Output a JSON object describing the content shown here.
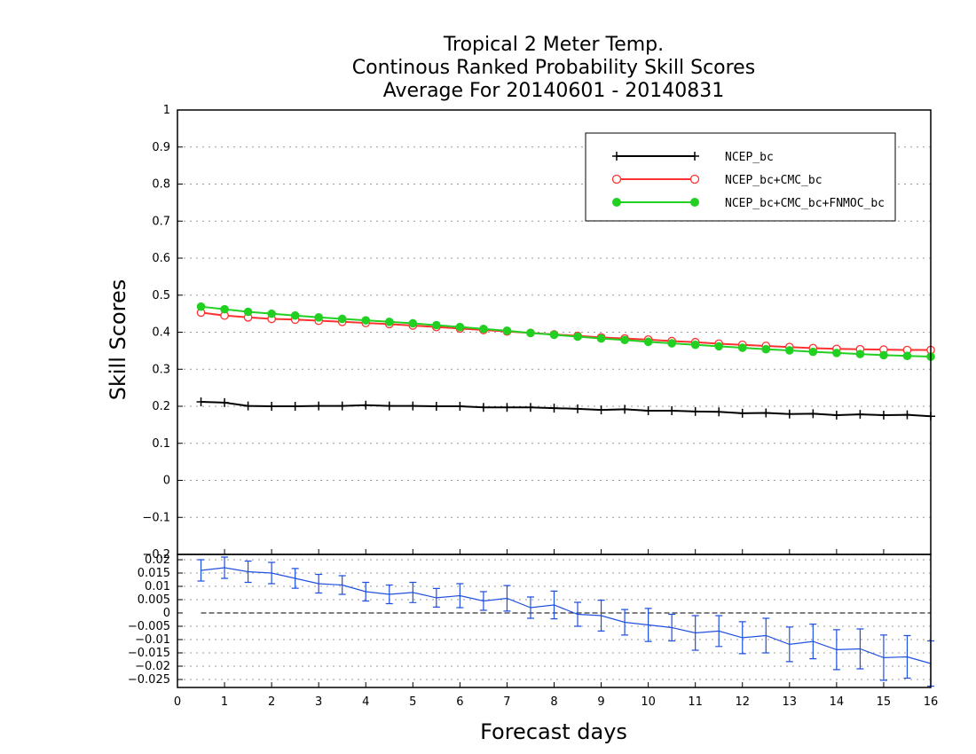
{
  "chart_data": [
    {
      "type": "line",
      "title": [
        "Tropical 2 Meter Temp.",
        "Continous Ranked Probability Skill Scores",
        "Average For 20140601 - 20140831"
      ],
      "xlabel": "Forecast days",
      "ylabel": "Skill Scores",
      "xlim": [
        0,
        16
      ],
      "ylim": [
        -0.2,
        1
      ],
      "xticks": [
        "0",
        "1",
        "2",
        "3",
        "4",
        "5",
        "6",
        "7",
        "8",
        "9",
        "10",
        "11",
        "12",
        "13",
        "14",
        "15",
        "16"
      ],
      "yticks": [
        "-0.2",
        "-0.1",
        "0",
        "0.1",
        "0.2",
        "0.3",
        "0.4",
        "0.5",
        "0.6",
        "0.7",
        "0.8",
        "0.9",
        "1"
      ],
      "grid": true,
      "legend_position": "top-right",
      "x": [
        0.5,
        1,
        1.5,
        2,
        2.5,
        3,
        3.5,
        4,
        4.5,
        5,
        5.5,
        6,
        6.5,
        7,
        7.5,
        8,
        8.5,
        9,
        9.5,
        10,
        10.5,
        11,
        11.5,
        12,
        12.5,
        13,
        13.5,
        14,
        14.5,
        15,
        15.5,
        16
      ],
      "series": [
        {
          "name": "NCEP_bc",
          "color": "#000000",
          "marker": "plus",
          "values": [
            0.212,
            0.21,
            0.201,
            0.2,
            0.2,
            0.201,
            0.201,
            0.203,
            0.201,
            0.201,
            0.2,
            0.2,
            0.197,
            0.197,
            0.197,
            0.195,
            0.193,
            0.19,
            0.192,
            0.188,
            0.188,
            0.186,
            0.185,
            0.181,
            0.182,
            0.179,
            0.18,
            0.176,
            0.178,
            0.176,
            0.177,
            0.173
          ]
        },
        {
          "name": "NCEP_bc+CMC_bc",
          "color": "#ff3030",
          "marker": "open-circle",
          "values": [
            0.453,
            0.445,
            0.44,
            0.436,
            0.434,
            0.431,
            0.428,
            0.425,
            0.422,
            0.418,
            0.414,
            0.41,
            0.406,
            0.402,
            0.398,
            0.394,
            0.39,
            0.386,
            0.383,
            0.38,
            0.376,
            0.373,
            0.369,
            0.366,
            0.363,
            0.36,
            0.357,
            0.355,
            0.354,
            0.353,
            0.352,
            0.352
          ]
        },
        {
          "name": "NCEP_bc+CMC_bc+FNMOC_bc",
          "color": "#22d022",
          "marker": "filled-circle",
          "values": [
            0.469,
            0.462,
            0.455,
            0.45,
            0.445,
            0.44,
            0.436,
            0.432,
            0.428,
            0.424,
            0.419,
            0.414,
            0.409,
            0.404,
            0.398,
            0.393,
            0.388,
            0.383,
            0.379,
            0.374,
            0.37,
            0.366,
            0.362,
            0.358,
            0.354,
            0.351,
            0.347,
            0.344,
            0.341,
            0.338,
            0.336,
            0.334
          ]
        }
      ]
    },
    {
      "type": "line",
      "xlim": [
        0,
        16
      ],
      "ylim": [
        -0.028,
        0.022
      ],
      "yticks": [
        "-0.025",
        "-0.02",
        "-0.015",
        "-0.01",
        "-0.005",
        "0",
        "0.005",
        "0.01",
        "0.015",
        "0.02"
      ],
      "grid": true,
      "zero_line": true,
      "x": [
        0.5,
        1,
        1.5,
        2,
        2.5,
        3,
        3.5,
        4,
        4.5,
        5,
        5.5,
        6,
        6.5,
        7,
        7.5,
        8,
        8.5,
        9,
        9.5,
        10,
        10.5,
        11,
        11.5,
        12,
        12.5,
        13,
        13.5,
        14,
        14.5,
        15,
        15.5,
        16
      ],
      "series": [
        {
          "color": "#2050e0",
          "values": [
            0.016,
            0.017,
            0.0155,
            0.015,
            0.013,
            0.011,
            0.0105,
            0.008,
            0.007,
            0.0077,
            0.0057,
            0.0065,
            0.0045,
            0.0055,
            0.002,
            0.003,
            -0.0005,
            -0.001,
            -0.0035,
            -0.0045,
            -0.0055,
            -0.0075,
            -0.0068,
            -0.0093,
            -0.0085,
            -0.0118,
            -0.0107,
            -0.0138,
            -0.0135,
            -0.0168,
            -0.0165,
            -0.019
          ],
          "error": [
            0.004,
            0.004,
            0.004,
            0.004,
            0.0037,
            0.0035,
            0.0035,
            0.0035,
            0.0035,
            0.0038,
            0.0035,
            0.0045,
            0.0035,
            0.0048,
            0.004,
            0.0052,
            0.0045,
            0.0058,
            0.0048,
            0.0062,
            0.005,
            0.0065,
            0.0058,
            0.006,
            0.0065,
            0.0065,
            0.0065,
            0.0075,
            0.0075,
            0.0085,
            0.008,
            0.0085
          ]
        }
      ]
    }
  ]
}
